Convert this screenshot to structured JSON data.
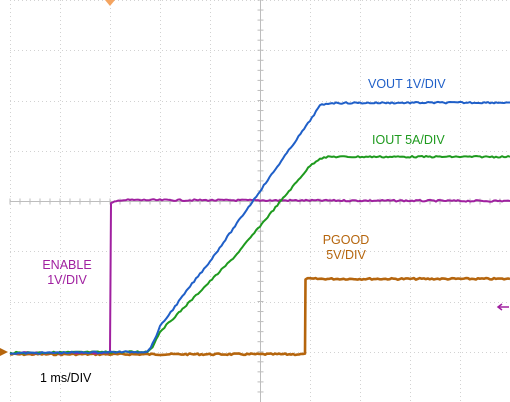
{
  "chart_data": {
    "type": "line",
    "title": "",
    "xlabel": "",
    "ylabel": "",
    "timebase": "1 ms/DIV",
    "xlim": [
      0,
      10
    ],
    "ylim": [
      -4,
      4
    ],
    "grid": true,
    "series": [
      {
        "name": "VOUT 1V/DIV",
        "label": "VOUT 1V/DIV",
        "color": "#1f5fc8",
        "x": [
          0,
          2.75,
          2.85,
          3.0,
          3.3,
          3.6,
          4.0,
          4.5,
          5.0,
          5.5,
          6.0,
          6.2,
          6.4,
          10
        ],
        "values": [
          -3.03,
          -3.0,
          -2.85,
          -2.5,
          -2.1,
          -1.7,
          -1.2,
          -0.5,
          0.2,
          0.9,
          1.6,
          1.9,
          1.95,
          1.96
        ]
      },
      {
        "name": "IOUT 5A/DIV",
        "label": "IOUT 5A/DIV",
        "color": "#1e9a1e",
        "x": [
          0,
          2.75,
          2.85,
          3.0,
          3.3,
          3.6,
          4.0,
          4.5,
          5.0,
          5.5,
          6.0,
          6.2,
          6.4,
          10
        ],
        "values": [
          -3.02,
          -3.0,
          -2.9,
          -2.6,
          -2.3,
          -2.0,
          -1.6,
          -1.1,
          -0.5,
          0.1,
          0.7,
          0.85,
          0.88,
          0.88
        ]
      },
      {
        "name": "ENABLE 1V/DIV",
        "label": "ENABLE 1V/DIV",
        "color": "#a020a0",
        "x": [
          0,
          2.0,
          2.02,
          2.2,
          10
        ],
        "values": [
          -3.02,
          -3.02,
          -0.05,
          0.02,
          0.0
        ]
      },
      {
        "name": "PGOOD 5V/DIV",
        "label": "PGOOD 5V/DIV",
        "color": "#b5650d",
        "x": [
          0,
          5.9,
          5.91,
          10
        ],
        "values": [
          -3.05,
          -3.05,
          -1.55,
          -1.55
        ]
      }
    ]
  },
  "labels": {
    "vout": "VOUT 1V/DIV",
    "iout": "IOUT 5A/DIV",
    "enable_line1": "ENABLE",
    "enable_line2": "1V/DIV",
    "pgood_line1": "PGOOD",
    "pgood_line2": "5V/DIV",
    "timebase": "1 ms/DIV"
  },
  "markers": {
    "trigger_color": "#f4a460",
    "ground_marker_color": "#b5650d",
    "offset_marker_color": "#a020a0",
    "trigger_icon": "trigger-marker-icon",
    "ground_icon": "ground-reference-arrow-icon",
    "offset_icon": "reference-offset-arrow-icon"
  }
}
